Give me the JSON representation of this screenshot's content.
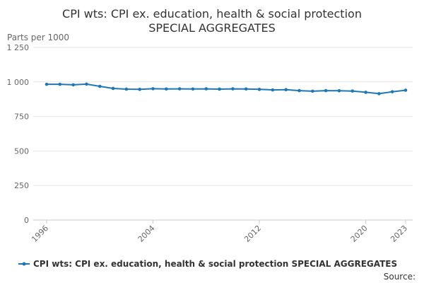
{
  "chart_data": {
    "type": "line",
    "title_line1": "CPI wts: CPI ex. education, health & social protection",
    "title_line2": "SPECIAL AGGREGATES",
    "ylabel": "Parts per 1000",
    "ylim": [
      0,
      1250
    ],
    "yticks": [
      0,
      250,
      500,
      750,
      1000,
      1250
    ],
    "ytick_labels": [
      "0",
      "250",
      "500",
      "750",
      "1 000",
      "1 250"
    ],
    "xlim": [
      1996,
      2023
    ],
    "xticks": [
      1996,
      2004,
      2012,
      2020,
      2023
    ],
    "grid": true,
    "legend_position": "bottom",
    "series": [
      {
        "name": "CPI wts: CPI ex. education, health & social protection SPECIAL AGGREGATES",
        "color": "#1f78b4",
        "x": [
          1996,
          1997,
          1998,
          1999,
          2000,
          2001,
          2002,
          2003,
          2004,
          2005,
          2006,
          2007,
          2008,
          2009,
          2010,
          2011,
          2012,
          2013,
          2014,
          2015,
          2016,
          2017,
          2018,
          2019,
          2020,
          2021,
          2022,
          2023
        ],
        "values": [
          983,
          983,
          979,
          984,
          968,
          953,
          948,
          946,
          951,
          949,
          950,
          949,
          950,
          948,
          950,
          949,
          946,
          942,
          944,
          937,
          933,
          937,
          936,
          934,
          925,
          915,
          929,
          940
        ]
      }
    ]
  },
  "footer": {
    "source_label": "Source:"
  }
}
